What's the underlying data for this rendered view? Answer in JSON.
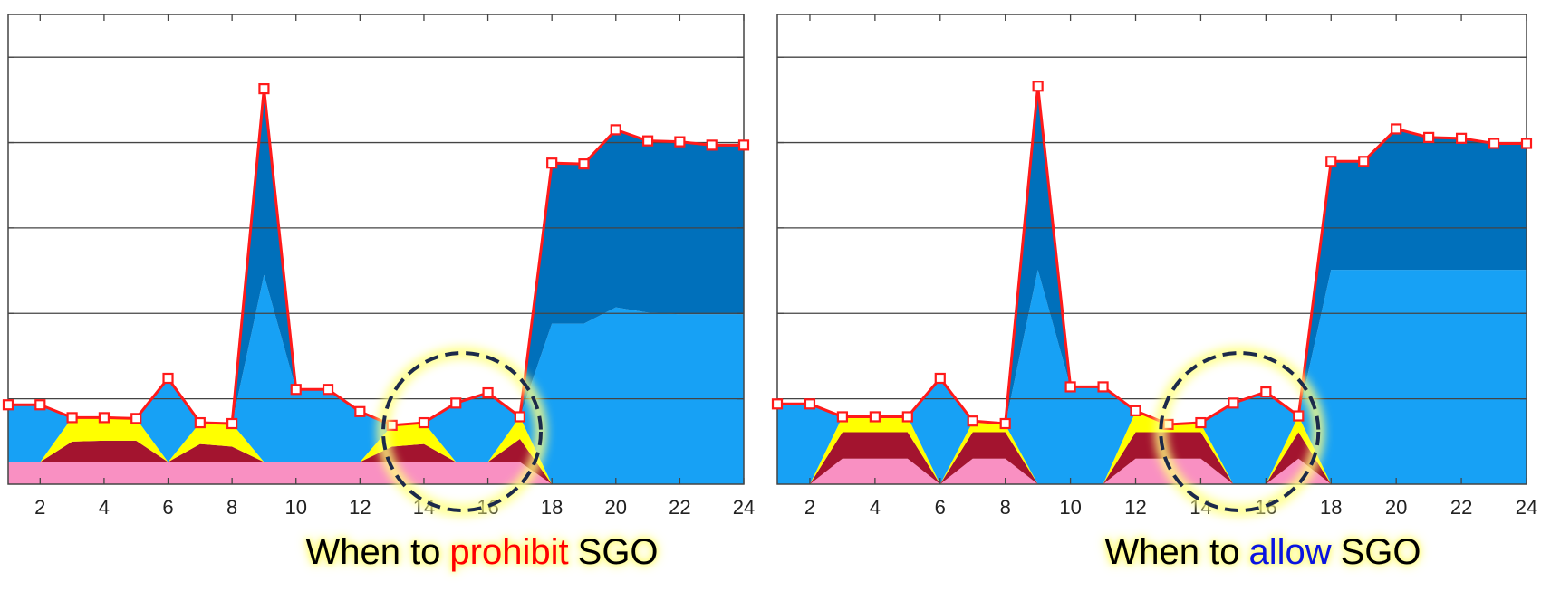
{
  "chart_data": [
    {
      "type": "stacked_area",
      "x": [
        1,
        2,
        3,
        4,
        5,
        6,
        7,
        8,
        9,
        10,
        11,
        12,
        13,
        14,
        15,
        16,
        17,
        18,
        19,
        20,
        21,
        22,
        23,
        24
      ],
      "xlim": [
        1,
        24
      ],
      "xticks": [
        2,
        4,
        6,
        8,
        10,
        12,
        14,
        16,
        18,
        20,
        22,
        24
      ],
      "ylim": [
        0,
        5.5
      ],
      "yticks": [
        1,
        2,
        3,
        4,
        5
      ],
      "grid": true,
      "series": [
        {
          "color": "#f990c2",
          "values": [
            0.26,
            0.26,
            0.26,
            0.26,
            0.26,
            0.26,
            0.26,
            0.26,
            0.26,
            0.26,
            0.26,
            0.26,
            0.26,
            0.26,
            0.26,
            0.26,
            0.26,
            0,
            0,
            0,
            0,
            0,
            0,
            0
          ]
        },
        {
          "color": "#a3142f",
          "values": [
            0,
            0,
            0.24,
            0.25,
            0.25,
            0,
            0.21,
            0.18,
            0,
            0,
            0,
            0,
            0.18,
            0.21,
            0,
            0,
            0.27,
            0,
            0,
            0,
            0,
            0,
            0,
            0
          ]
        },
        {
          "color": "#ffff00",
          "values": [
            0,
            0,
            0.28,
            0.27,
            0.26,
            0,
            0.25,
            0.27,
            0,
            0,
            0,
            0,
            0.25,
            0.25,
            0,
            0,
            0.26,
            0,
            0,
            0,
            0,
            0,
            0,
            0
          ]
        },
        {
          "color": "#17a1f5",
          "values": [
            0.67,
            0.67,
            0,
            0,
            0,
            0.98,
            0,
            0,
            2.19,
            0.85,
            0.85,
            0.59,
            0,
            0,
            0.69,
            0.81,
            0,
            1.88,
            1.88,
            2.07,
            2.01,
            1.99,
            1.99,
            1.99
          ]
        },
        {
          "color": "#0070bb",
          "values": [
            0,
            0,
            0,
            0,
            0,
            0,
            0,
            0,
            2.18,
            0,
            0,
            0,
            0,
            0,
            0,
            0,
            0,
            1.88,
            1.87,
            2.08,
            2.01,
            2.02,
            1.98,
            1.98
          ]
        }
      ],
      "line": {
        "color": "#ff1a1a",
        "values": [
          0.93,
          0.93,
          0.78,
          0.78,
          0.77,
          1.24,
          0.72,
          0.71,
          4.63,
          1.11,
          1.11,
          0.85,
          0.69,
          0.72,
          0.95,
          1.07,
          0.79,
          3.76,
          3.75,
          4.15,
          4.02,
          4.01,
          3.97,
          3.97
        ]
      },
      "caption": {
        "prefix": "When to",
        "keyword": "prohibit",
        "keyword_color": "#ff0000",
        "suffix": "SGO"
      }
    },
    {
      "type": "stacked_area",
      "x": [
        1,
        2,
        3,
        4,
        5,
        6,
        7,
        8,
        9,
        10,
        11,
        12,
        13,
        14,
        15,
        16,
        17,
        18,
        19,
        20,
        21,
        22,
        23,
        24
      ],
      "xlim": [
        1,
        24
      ],
      "xticks": [
        2,
        4,
        6,
        8,
        10,
        12,
        14,
        16,
        18,
        20,
        22,
        24
      ],
      "ylim": [
        0,
        5.5
      ],
      "yticks": [
        1,
        2,
        3,
        4,
        5
      ],
      "grid": true,
      "series": [
        {
          "color": "#f990c2",
          "values": [
            0,
            0,
            0.3,
            0.3,
            0.3,
            0,
            0.3,
            0.3,
            0,
            0,
            0,
            0.3,
            0.3,
            0.3,
            0,
            0,
            0.3,
            0,
            0,
            0,
            0,
            0,
            0,
            0
          ]
        },
        {
          "color": "#a3142f",
          "values": [
            0,
            0,
            0.31,
            0.31,
            0.31,
            0,
            0.31,
            0.31,
            0,
            0,
            0,
            0.31,
            0.31,
            0.31,
            0,
            0,
            0.31,
            0,
            0,
            0,
            0,
            0,
            0,
            0
          ]
        },
        {
          "color": "#ffff00",
          "values": [
            0,
            0,
            0.18,
            0.18,
            0.18,
            0,
            0.12,
            0.09,
            0,
            0,
            0,
            0.24,
            0.08,
            0.1,
            0,
            0,
            0.19,
            0,
            0,
            0,
            0,
            0,
            0,
            0
          ]
        },
        {
          "color": "#17a1f5",
          "values": [
            0.94,
            0.94,
            0,
            0,
            0,
            1.24,
            0,
            0,
            2.51,
            1.14,
            1.14,
            0,
            0,
            0,
            0.95,
            1.08,
            0,
            2.51,
            2.51,
            2.51,
            2.51,
            2.51,
            2.51,
            2.51
          ]
        },
        {
          "color": "#0070bb",
          "values": [
            0,
            0,
            0,
            0,
            0,
            0,
            0,
            0,
            2.15,
            0,
            0,
            0,
            0,
            0,
            0,
            0,
            0,
            1.27,
            1.27,
            1.65,
            1.55,
            1.54,
            1.48,
            1.48
          ]
        }
      ],
      "line": {
        "color": "#ff1a1a",
        "values": [
          0.94,
          0.94,
          0.79,
          0.79,
          0.79,
          1.24,
          0.74,
          0.71,
          4.66,
          1.14,
          1.14,
          0.86,
          0.7,
          0.72,
          0.95,
          1.08,
          0.8,
          3.78,
          3.78,
          4.16,
          4.06,
          4.05,
          3.99,
          3.99
        ]
      },
      "caption": {
        "prefix": "When to",
        "keyword": "allow",
        "keyword_color": "#0a14e0",
        "suffix": "SGO"
      }
    }
  ]
}
